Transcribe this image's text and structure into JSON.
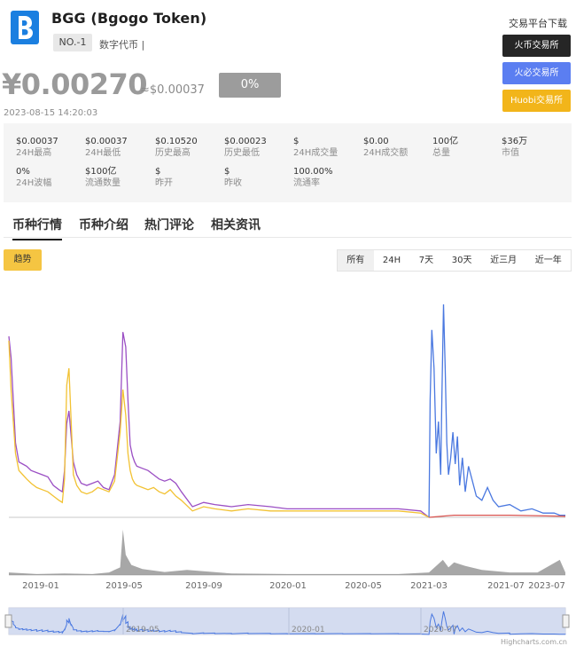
{
  "coin": {
    "name": "BGG (Bgogo Token)",
    "rank": "NO.-1",
    "category": "数字代币 |"
  },
  "price": {
    "cny": "¥0.00270",
    "usd": "≈$0.00037",
    "change": "0%",
    "timestamp": "2023-08-15 14:20:03"
  },
  "exchanges": {
    "title": "交易平台下载",
    "items": [
      "火币交易所",
      "火必交易所",
      "Huobi交易所"
    ]
  },
  "stats": [
    {
      "value": "$0.00037",
      "label": "24H最高"
    },
    {
      "value": "$0.00037",
      "label": "24H最低"
    },
    {
      "value": "$0.10520",
      "label": "历史最高"
    },
    {
      "value": "$0.00023",
      "label": "历史最低"
    },
    {
      "value": "$",
      "label": "24H成交量"
    },
    {
      "value": "$0.00",
      "label": "24H成交额"
    },
    {
      "value": "100亿",
      "label": "总量"
    },
    {
      "value": "$36万",
      "label": "市值"
    },
    {
      "value": "0%",
      "label": "24H波幅"
    },
    {
      "value": "$100亿",
      "label": "流通数量"
    },
    {
      "value": "$",
      "label": "昨开"
    },
    {
      "value": "$",
      "label": "昨收"
    },
    {
      "value": "100.00%",
      "label": "流通率"
    }
  ],
  "tabs": [
    "币种行情",
    "币种介绍",
    "热门评论",
    "相关资讯"
  ],
  "chart_controls": {
    "trend": "趋势",
    "ranges": [
      "所有",
      "24H",
      "7天",
      "30天",
      "近三月",
      "近一年"
    ],
    "selected_range": "所有"
  },
  "chart_data": {
    "type": "line",
    "title": "",
    "x_ticks": [
      "2019-01",
      "2019-05",
      "2019-09",
      "2020-01",
      "2020-05",
      "2021-03",
      "2021-07",
      "2023-07"
    ],
    "navigator_ticks": [
      "2019-05",
      "2020-01",
      "2020-07"
    ],
    "credit": "Highcharts.com.cn",
    "series": [
      {
        "color": "#9b4fc4",
        "x": [
          0.0,
          0.004,
          0.008,
          0.012,
          0.018,
          0.025,
          0.032,
          0.04,
          0.05,
          0.06,
          0.07,
          0.08,
          0.09,
          0.096,
          0.1,
          0.104,
          0.108,
          0.112,
          0.116,
          0.122,
          0.13,
          0.14,
          0.15,
          0.16,
          0.17,
          0.18,
          0.19,
          0.2,
          0.205,
          0.21,
          0.214,
          0.218,
          0.222,
          0.226,
          0.23,
          0.24,
          0.25,
          0.26,
          0.27,
          0.28,
          0.29,
          0.3,
          0.31,
          0.33,
          0.35,
          0.37,
          0.4,
          0.43,
          0.47,
          0.5,
          0.55,
          0.6,
          0.65,
          0.7,
          0.74,
          0.755
        ],
        "y": [
          0.85,
          0.75,
          0.55,
          0.35,
          0.26,
          0.25,
          0.24,
          0.22,
          0.21,
          0.2,
          0.19,
          0.15,
          0.13,
          0.12,
          0.22,
          0.44,
          0.5,
          0.38,
          0.26,
          0.2,
          0.16,
          0.15,
          0.16,
          0.17,
          0.14,
          0.13,
          0.2,
          0.45,
          0.87,
          0.8,
          0.55,
          0.34,
          0.29,
          0.26,
          0.24,
          0.23,
          0.22,
          0.2,
          0.18,
          0.17,
          0.18,
          0.16,
          0.12,
          0.05,
          0.07,
          0.06,
          0.05,
          0.06,
          0.05,
          0.04,
          0.04,
          0.04,
          0.04,
          0.04,
          0.03,
          0.0
        ]
      },
      {
        "color": "#f2c233",
        "x": [
          0.0,
          0.004,
          0.008,
          0.012,
          0.018,
          0.025,
          0.032,
          0.04,
          0.05,
          0.06,
          0.07,
          0.08,
          0.09,
          0.096,
          0.1,
          0.104,
          0.108,
          0.112,
          0.116,
          0.122,
          0.13,
          0.14,
          0.15,
          0.16,
          0.17,
          0.18,
          0.19,
          0.2,
          0.205,
          0.21,
          0.214,
          0.218,
          0.222,
          0.226,
          0.23,
          0.24,
          0.25,
          0.26,
          0.27,
          0.28,
          0.29,
          0.3,
          0.31,
          0.33,
          0.35,
          0.37,
          0.4,
          0.43,
          0.47,
          0.5,
          0.55,
          0.6,
          0.65,
          0.7,
          0.74,
          0.755
        ],
        "y": [
          0.83,
          0.6,
          0.45,
          0.3,
          0.22,
          0.2,
          0.18,
          0.16,
          0.14,
          0.13,
          0.12,
          0.1,
          0.08,
          0.07,
          0.18,
          0.62,
          0.7,
          0.45,
          0.2,
          0.15,
          0.12,
          0.11,
          0.12,
          0.14,
          0.13,
          0.12,
          0.17,
          0.4,
          0.6,
          0.48,
          0.3,
          0.22,
          0.18,
          0.16,
          0.15,
          0.14,
          0.13,
          0.14,
          0.12,
          0.11,
          0.13,
          0.1,
          0.08,
          0.03,
          0.05,
          0.04,
          0.03,
          0.04,
          0.03,
          0.03,
          0.03,
          0.03,
          0.03,
          0.03,
          0.02,
          0.0
        ]
      },
      {
        "color": "#4a78e0",
        "x": [
          0.755,
          0.757,
          0.76,
          0.764,
          0.768,
          0.772,
          0.776,
          0.778,
          0.781,
          0.784,
          0.787,
          0.79,
          0.794,
          0.798,
          0.802,
          0.806,
          0.81,
          0.815,
          0.82,
          0.826,
          0.832,
          0.84,
          0.85,
          0.86,
          0.87,
          0.88,
          0.9,
          0.92,
          0.94,
          0.96,
          0.98,
          0.99,
          1.0
        ],
        "y": [
          0.0,
          0.55,
          0.88,
          0.7,
          0.3,
          0.45,
          0.2,
          0.55,
          1.0,
          0.7,
          0.35,
          0.2,
          0.28,
          0.4,
          0.25,
          0.38,
          0.15,
          0.28,
          0.12,
          0.24,
          0.18,
          0.1,
          0.08,
          0.14,
          0.08,
          0.05,
          0.06,
          0.03,
          0.04,
          0.02,
          0.02,
          0.01,
          0.01
        ]
      },
      {
        "color": "#d9534f",
        "x": [
          0.755,
          0.8,
          0.9,
          1.0
        ],
        "y": [
          0.0,
          0.01,
          0.01,
          0.005
        ]
      }
    ],
    "volume": {
      "color": "#8a8a8a",
      "x": [
        0.0,
        0.05,
        0.1,
        0.15,
        0.18,
        0.2,
        0.205,
        0.21,
        0.22,
        0.24,
        0.28,
        0.32,
        0.4,
        0.5,
        0.6,
        0.7,
        0.755,
        0.78,
        0.79,
        0.8,
        0.82,
        0.85,
        0.9,
        0.95,
        0.99,
        1.0
      ],
      "y": [
        0.05,
        0.02,
        0.03,
        0.02,
        0.05,
        0.15,
        0.9,
        0.4,
        0.2,
        0.12,
        0.06,
        0.1,
        0.03,
        0.02,
        0.02,
        0.02,
        0.05,
        0.3,
        0.15,
        0.25,
        0.18,
        0.1,
        0.05,
        0.05,
        0.3,
        0.05
      ]
    }
  }
}
